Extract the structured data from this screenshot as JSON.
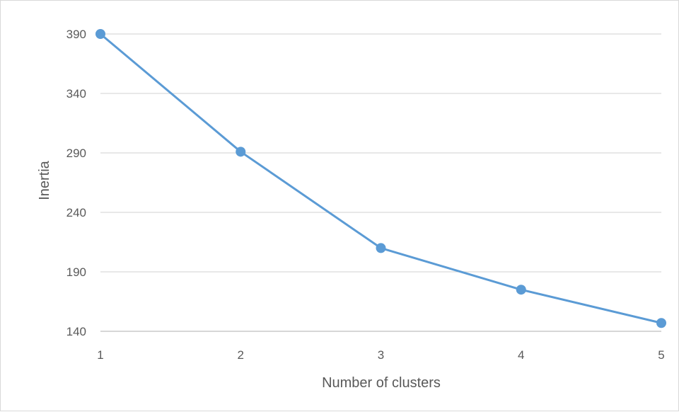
{
  "chart_data": {
    "type": "line",
    "x": [
      1,
      2,
      3,
      4,
      5
    ],
    "series": [
      {
        "values": [
          390,
          291,
          210,
          175,
          147
        ],
        "color": "#5b9bd5"
      }
    ],
    "xlabel": "Number of clusters",
    "ylabel": "Inertia",
    "xlim": [
      1,
      5
    ],
    "ylim": [
      140,
      390
    ],
    "x_ticks": [
      "1",
      "2",
      "3",
      "4",
      "5"
    ],
    "y_ticks": [
      "140",
      "190",
      "240",
      "290",
      "340",
      "390"
    ],
    "y_tick_values": [
      140,
      190,
      240,
      290,
      340,
      390
    ],
    "grid": "horizontal",
    "grid_color": "#d9d9d9",
    "axis_line_color": "#bfbfbf",
    "text_color": "#595959",
    "marker": "circle"
  }
}
